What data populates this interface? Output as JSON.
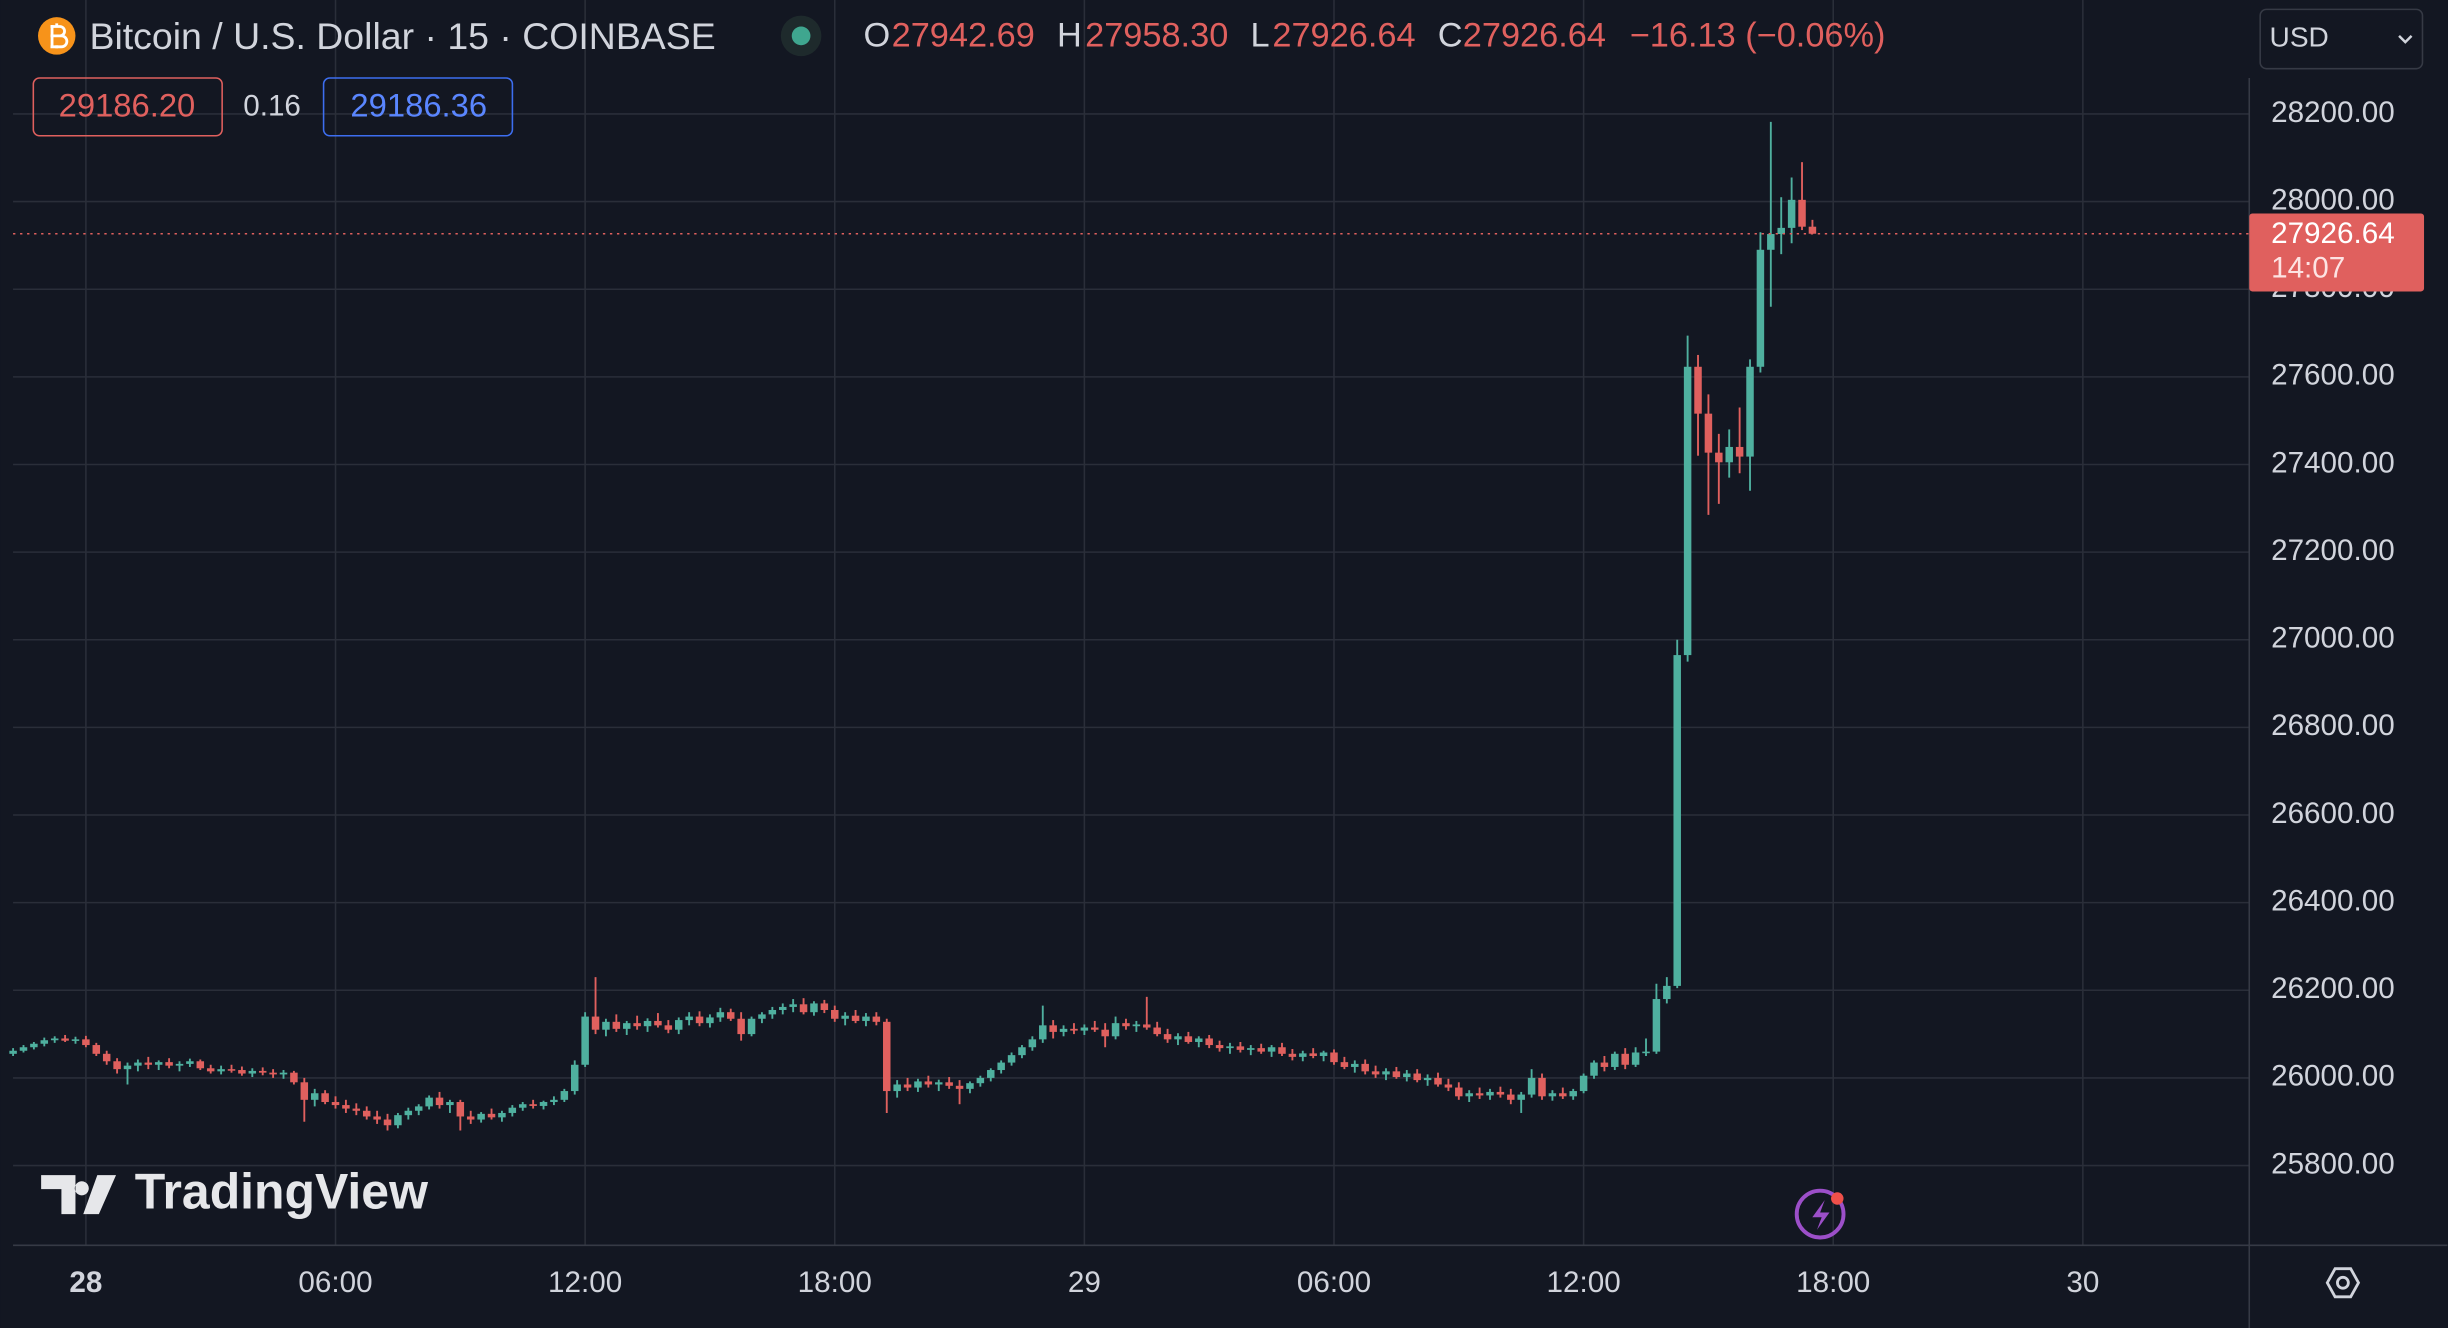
{
  "chart_data": {
    "type": "candlestick",
    "title": "Bitcoin / U.S. Dollar · 15 · COINBASE",
    "header": {
      "o_label": "O",
      "o": "27942.69",
      "h_label": "H",
      "h": "27958.30",
      "l_label": "L",
      "l": "27926.64",
      "c_label": "C",
      "c": "27926.64",
      "change": "−16.13 (−0.06%)"
    },
    "bid": "29186.20",
    "spread": "0.16",
    "ask": "29186.36",
    "currency": "USD",
    "countdown": "14:07",
    "watermark": "TradingView",
    "up_color": "#4fb09f",
    "down_color": "#e0605e",
    "grid": true,
    "xlim": [
      -1.8,
      52
    ],
    "xticks": [
      {
        "value": 0,
        "label": "28"
      },
      {
        "value": 6,
        "label": "06:00"
      },
      {
        "value": 12,
        "label": "12:00"
      },
      {
        "value": 18,
        "label": "18:00"
      },
      {
        "value": 24,
        "label": "29"
      },
      {
        "value": 30,
        "label": "06:00"
      },
      {
        "value": 36,
        "label": "12:00"
      },
      {
        "value": 42,
        "label": "18:00"
      },
      {
        "value": 48,
        "label": "30"
      }
    ],
    "ylim": [
      25618,
      28282
    ],
    "yticks": [
      {
        "value": 25800,
        "label": "25800.00"
      },
      {
        "value": 26000,
        "label": "26000.00"
      },
      {
        "value": 26200,
        "label": "26200.00"
      },
      {
        "value": 26400,
        "label": "26400.00"
      },
      {
        "value": 26600,
        "label": "26600.00"
      },
      {
        "value": 26800,
        "label": "26800.00"
      },
      {
        "value": 27000,
        "label": "27000.00"
      },
      {
        "value": 27200,
        "label": "27200.00"
      },
      {
        "value": 27400,
        "label": "27400.00"
      },
      {
        "value": 27600,
        "label": "27600.00"
      },
      {
        "value": 27800,
        "label": "27800.00"
      },
      {
        "value": 28000,
        "label": "28000.00"
      },
      {
        "value": 28200,
        "label": "28200.00"
      }
    ],
    "x": [
      -1.75,
      -1.5,
      -1.25,
      -1,
      -0.75,
      -0.5,
      -0.25,
      0,
      0.25,
      0.5,
      0.75,
      1,
      1.25,
      1.5,
      1.75,
      2,
      2.25,
      2.5,
      2.75,
      3,
      3.25,
      3.5,
      3.75,
      4,
      4.25,
      4.5,
      4.75,
      5,
      5.25,
      5.5,
      5.75,
      6,
      6.25,
      6.5,
      6.75,
      7,
      7.25,
      7.5,
      7.75,
      8,
      8.25,
      8.5,
      8.75,
      9,
      9.25,
      9.5,
      9.75,
      10,
      10.25,
      10.5,
      10.75,
      11,
      11.25,
      11.5,
      11.75,
      12,
      12.25,
      12.5,
      12.75,
      13,
      13.25,
      13.5,
      13.75,
      14,
      14.25,
      14.5,
      14.75,
      15,
      15.25,
      15.5,
      15.75,
      16,
      16.25,
      16.5,
      16.75,
      17,
      17.25,
      17.5,
      17.75,
      18,
      18.25,
      18.5,
      18.75,
      19,
      19.25,
      19.5,
      19.75,
      20,
      20.25,
      20.5,
      20.75,
      21,
      21.25,
      21.5,
      21.75,
      22,
      22.25,
      22.5,
      22.75,
      23,
      23.25,
      23.5,
      23.75,
      24,
      24.25,
      24.5,
      24.75,
      25,
      25.25,
      25.5,
      25.75,
      26,
      26.25,
      26.5,
      26.75,
      27,
      27.25,
      27.5,
      27.75,
      28,
      28.25,
      28.5,
      28.75,
      29,
      29.25,
      29.5,
      29.75,
      30,
      30.25,
      30.5,
      30.75,
      31,
      31.25,
      31.5,
      31.75,
      32,
      32.25,
      32.5,
      32.75,
      33,
      33.25,
      33.5,
      33.75,
      34,
      34.25,
      34.5,
      34.75,
      35,
      35.25,
      35.5,
      35.75,
      36,
      36.25,
      36.5,
      36.75,
      37,
      37.25,
      37.5,
      37.75,
      38,
      38.25,
      38.5,
      38.75,
      39,
      39.25,
      39.5,
      39.75,
      40,
      40.25,
      40.5,
      40.75,
      41,
      41.25,
      41.5
    ],
    "ohlc": [
      [
        26055,
        26068,
        26050,
        26062
      ],
      [
        26062,
        26075,
        26058,
        26070
      ],
      [
        26070,
        26082,
        26065,
        26078
      ],
      [
        26078,
        26092,
        26072,
        26086
      ],
      [
        26086,
        26095,
        26080,
        26090
      ],
      [
        26090,
        26098,
        26082,
        26085
      ],
      [
        26085,
        26094,
        26078,
        26088
      ],
      [
        26088,
        26096,
        26070,
        26075
      ],
      [
        26075,
        26080,
        26050,
        26055
      ],
      [
        26055,
        26062,
        26030,
        26038
      ],
      [
        26038,
        26045,
        26010,
        26020
      ],
      [
        26020,
        26035,
        25985,
        26028
      ],
      [
        26028,
        26042,
        26015,
        26035
      ],
      [
        26035,
        26048,
        26020,
        26030
      ],
      [
        26030,
        26040,
        26018,
        26036
      ],
      [
        26036,
        26045,
        26022,
        26028
      ],
      [
        26028,
        26038,
        26015,
        26032
      ],
      [
        26032,
        26044,
        26025,
        26038
      ],
      [
        26038,
        26042,
        26018,
        26022
      ],
      [
        26022,
        26030,
        26010,
        26015
      ],
      [
        26015,
        26028,
        26008,
        26020
      ],
      [
        26020,
        26030,
        26012,
        26018
      ],
      [
        26018,
        26026,
        26005,
        26010
      ],
      [
        26010,
        26022,
        26002,
        26016
      ],
      [
        26016,
        26024,
        26006,
        26012
      ],
      [
        26012,
        26020,
        26000,
        26008
      ],
      [
        26008,
        26018,
        25998,
        26012
      ],
      [
        26012,
        26016,
        25985,
        25990
      ],
      [
        25990,
        26000,
        25900,
        25950
      ],
      [
        25950,
        25975,
        25935,
        25965
      ],
      [
        25965,
        25972,
        25940,
        25945
      ],
      [
        25945,
        25958,
        25930,
        25938
      ],
      [
        25938,
        25950,
        25920,
        25930
      ],
      [
        25930,
        25942,
        25915,
        25925
      ],
      [
        25925,
        25935,
        25905,
        25912
      ],
      [
        25912,
        25925,
        25895,
        25905
      ],
      [
        25905,
        25918,
        25880,
        25892
      ],
      [
        25892,
        25920,
        25885,
        25915
      ],
      [
        25915,
        25932,
        25905,
        25925
      ],
      [
        25925,
        25940,
        25915,
        25935
      ],
      [
        25935,
        25960,
        25928,
        25955
      ],
      [
        25955,
        25968,
        25930,
        25938
      ],
      [
        25938,
        25950,
        25920,
        25945
      ],
      [
        25945,
        25950,
        25880,
        25912
      ],
      [
        25912,
        25925,
        25895,
        25905
      ],
      [
        25905,
        25922,
        25898,
        25918
      ],
      [
        25918,
        25930,
        25905,
        25910
      ],
      [
        25910,
        25925,
        25900,
        25920
      ],
      [
        25920,
        25938,
        25912,
        25932
      ],
      [
        25932,
        25945,
        25925,
        25940
      ],
      [
        25940,
        25950,
        25930,
        25936
      ],
      [
        25936,
        25948,
        25928,
        25945
      ],
      [
        25945,
        25958,
        25938,
        25950
      ],
      [
        25950,
        25975,
        25945,
        25970
      ],
      [
        25970,
        26040,
        25962,
        26030
      ],
      [
        26030,
        26150,
        26025,
        26140
      ],
      [
        26140,
        26230,
        26100,
        26110
      ],
      [
        26110,
        26135,
        26095,
        26128
      ],
      [
        26128,
        26145,
        26105,
        26112
      ],
      [
        26112,
        26130,
        26098,
        26125
      ],
      [
        26125,
        26142,
        26110,
        26118
      ],
      [
        26118,
        26136,
        26105,
        26130
      ],
      [
        26130,
        26148,
        26115,
        26120
      ],
      [
        26120,
        26132,
        26102,
        26110
      ],
      [
        26110,
        26138,
        26100,
        26132
      ],
      [
        26132,
        26150,
        26120,
        26140
      ],
      [
        26140,
        26152,
        26118,
        26125
      ],
      [
        26125,
        26145,
        26115,
        26138
      ],
      [
        26138,
        26160,
        26128,
        26150
      ],
      [
        26150,
        26158,
        26130,
        26135
      ],
      [
        26135,
        26150,
        26085,
        26100
      ],
      [
        26100,
        26140,
        26095,
        26135
      ],
      [
        26135,
        26150,
        26125,
        26145
      ],
      [
        26145,
        26162,
        26135,
        26155
      ],
      [
        26155,
        26170,
        26145,
        26162
      ],
      [
        26162,
        26180,
        26150,
        26168
      ],
      [
        26168,
        26182,
        26145,
        26150
      ],
      [
        26150,
        26175,
        26142,
        26170
      ],
      [
        26170,
        26178,
        26148,
        26155
      ],
      [
        26155,
        26165,
        26128,
        26135
      ],
      [
        26135,
        26150,
        26120,
        26142
      ],
      [
        26142,
        26155,
        26125,
        26130
      ],
      [
        26130,
        26148,
        26118,
        26140
      ],
      [
        26140,
        26150,
        26120,
        26128
      ],
      [
        26128,
        26135,
        25920,
        25970
      ],
      [
        25970,
        25995,
        25955,
        25985
      ],
      [
        25985,
        26000,
        25970,
        25978
      ],
      [
        25978,
        25998,
        25968,
        25992
      ],
      [
        25992,
        26005,
        25978,
        25985
      ],
      [
        25985,
        25996,
        25970,
        25990
      ],
      [
        25990,
        26002,
        25975,
        25982
      ],
      [
        25982,
        25995,
        25940,
        25975
      ],
      [
        25975,
        25992,
        25965,
        25988
      ],
      [
        25988,
        26005,
        25980,
        26000
      ],
      [
        26000,
        26022,
        25992,
        26018
      ],
      [
        26018,
        26040,
        26010,
        26035
      ],
      [
        26035,
        26058,
        26028,
        26052
      ],
      [
        26052,
        26075,
        26045,
        26070
      ],
      [
        26070,
        26095,
        26062,
        26088
      ],
      [
        26088,
        26165,
        26080,
        26120
      ],
      [
        26120,
        26132,
        26090,
        26105
      ],
      [
        26105,
        26120,
        26095,
        26112
      ],
      [
        26112,
        26125,
        26100,
        26108
      ],
      [
        26108,
        26122,
        26098,
        26115
      ],
      [
        26115,
        26130,
        26105,
        26110
      ],
      [
        26110,
        26125,
        26070,
        26095
      ],
      [
        26095,
        26140,
        26088,
        26125
      ],
      [
        26125,
        26135,
        26110,
        26118
      ],
      [
        26118,
        26130,
        26105,
        26122
      ],
      [
        26122,
        26185,
        26110,
        26115
      ],
      [
        26115,
        26128,
        26095,
        26100
      ],
      [
        26100,
        26112,
        26080,
        26088
      ],
      [
        26088,
        26102,
        26075,
        26095
      ],
      [
        26095,
        26105,
        26078,
        26082
      ],
      [
        26082,
        26095,
        26070,
        26090
      ],
      [
        26090,
        26098,
        26068,
        26075
      ],
      [
        26075,
        26085,
        26060,
        26068
      ],
      [
        26068,
        26080,
        26055,
        26072
      ],
      [
        26072,
        26082,
        26058,
        26064
      ],
      [
        26064,
        26075,
        26052,
        26068
      ],
      [
        26068,
        26078,
        26055,
        26060
      ],
      [
        26060,
        26075,
        26048,
        26070
      ],
      [
        26070,
        26080,
        26050,
        26055
      ],
      [
        26055,
        26066,
        26040,
        26048
      ],
      [
        26048,
        26062,
        26038,
        26056
      ],
      [
        26056,
        26068,
        26045,
        26050
      ],
      [
        26050,
        26062,
        26038,
        26058
      ],
      [
        26058,
        26065,
        26030,
        26036
      ],
      [
        26036,
        26048,
        26020,
        26025
      ],
      [
        26025,
        26040,
        26012,
        26032
      ],
      [
        26032,
        26042,
        26008,
        26015
      ],
      [
        26015,
        26028,
        26000,
        26008
      ],
      [
        26008,
        26022,
        25995,
        26015
      ],
      [
        26015,
        26025,
        25998,
        26002
      ],
      [
        26002,
        26018,
        25992,
        26010
      ],
      [
        26010,
        26020,
        25990,
        25995
      ],
      [
        25995,
        26008,
        25982,
        26000
      ],
      [
        26000,
        26012,
        25980,
        25985
      ],
      [
        25985,
        25998,
        25970,
        25978
      ],
      [
        25978,
        25990,
        25950,
        25958
      ],
      [
        25958,
        25972,
        25945,
        25965
      ],
      [
        25965,
        25978,
        25952,
        25960
      ],
      [
        25960,
        25975,
        25950,
        25968
      ],
      [
        25968,
        25980,
        25955,
        25962
      ],
      [
        25962,
        25975,
        25940,
        25950
      ],
      [
        25950,
        25968,
        25920,
        25962
      ],
      [
        25962,
        26020,
        25955,
        26000
      ],
      [
        26000,
        26010,
        25950,
        25958
      ],
      [
        25958,
        25972,
        25948,
        25965
      ],
      [
        25965,
        25978,
        25952,
        25958
      ],
      [
        25958,
        25975,
        25950,
        25970
      ],
      [
        25970,
        26010,
        25965,
        26005
      ],
      [
        26005,
        26040,
        25998,
        26035
      ],
      [
        26035,
        26050,
        26015,
        26025
      ],
      [
        26025,
        26060,
        26018,
        26055
      ],
      [
        26055,
        26068,
        26020,
        26030
      ],
      [
        26030,
        26070,
        26025,
        26058
      ],
      [
        26058,
        26090,
        26050,
        26060
      ],
      [
        26060,
        26215,
        26055,
        26180
      ],
      [
        26180,
        26230,
        26170,
        26210
      ],
      [
        26210,
        27000,
        26205,
        26965
      ],
      [
        26965,
        27694,
        26950,
        27623
      ],
      [
        27623,
        27650,
        27420,
        27516
      ],
      [
        27516,
        27560,
        27285,
        27427
      ],
      [
        27427,
        27470,
        27310,
        27405
      ],
      [
        27405,
        27480,
        27370,
        27440
      ],
      [
        27440,
        27530,
        27380,
        27418
      ],
      [
        27418,
        27640,
        27340,
        27623
      ],
      [
        27623,
        27930,
        27610,
        27890
      ],
      [
        27890,
        28182,
        27760,
        27926
      ],
      [
        27926,
        28010,
        27880,
        27940
      ],
      [
        27940,
        28055,
        27905,
        28004
      ],
      [
        28004,
        28090,
        27935,
        27942.69
      ],
      [
        27942.69,
        27958.3,
        27926.64,
        27926.64
      ]
    ]
  }
}
